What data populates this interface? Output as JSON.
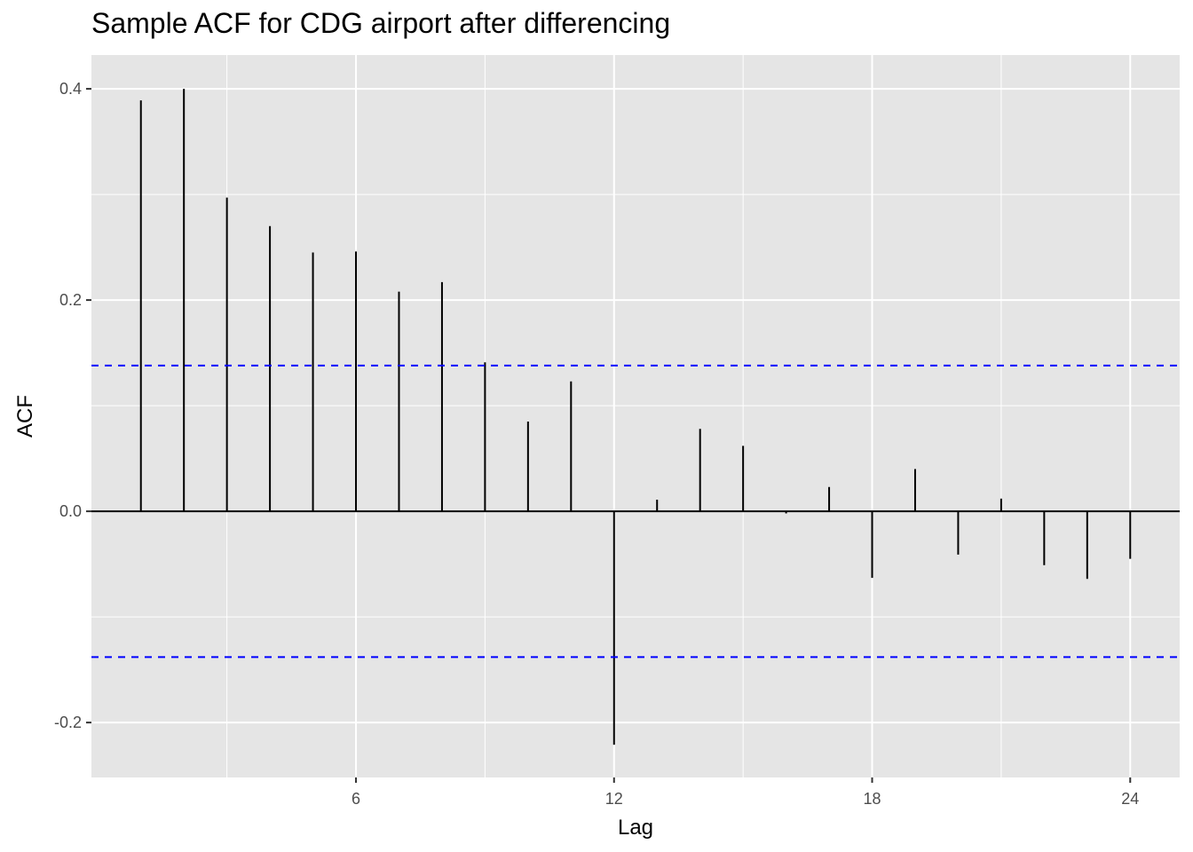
{
  "chart_data": {
    "type": "bar",
    "title": "Sample ACF for CDG airport after differencing",
    "xlabel": "Lag",
    "ylabel": "ACF",
    "lags": [
      1,
      2,
      3,
      4,
      5,
      6,
      7,
      8,
      9,
      10,
      11,
      12,
      13,
      14,
      15,
      16,
      17,
      18,
      19,
      20,
      21,
      22,
      23,
      24
    ],
    "values": [
      0.389,
      0.4,
      0.297,
      0.27,
      0.245,
      0.246,
      0.208,
      0.217,
      0.141,
      0.085,
      0.123,
      -0.221,
      0.011,
      0.078,
      0.062,
      -0.002,
      0.023,
      -0.063,
      0.04,
      -0.041,
      0.012,
      -0.051,
      -0.064,
      -0.045
    ],
    "confidence_band": 0.138,
    "x_ticks": [
      6,
      12,
      18,
      24
    ],
    "x_tick_labels": [
      "6",
      "12",
      "18",
      "24"
    ],
    "y_ticks": [
      -0.2,
      0.0,
      0.2,
      0.4
    ],
    "y_tick_labels": [
      "-0.2",
      "0.0",
      "0.2",
      "0.4"
    ],
    "xlim": [
      -0.15,
      25.15
    ],
    "ylim": [
      -0.252,
      0.432
    ],
    "grid": true,
    "colors": {
      "panel": "#e5e5e5",
      "grid": "#ffffff",
      "bar": "#000000",
      "confidence_line": "#0000ff",
      "tick_label": "#4d4d4d"
    }
  }
}
